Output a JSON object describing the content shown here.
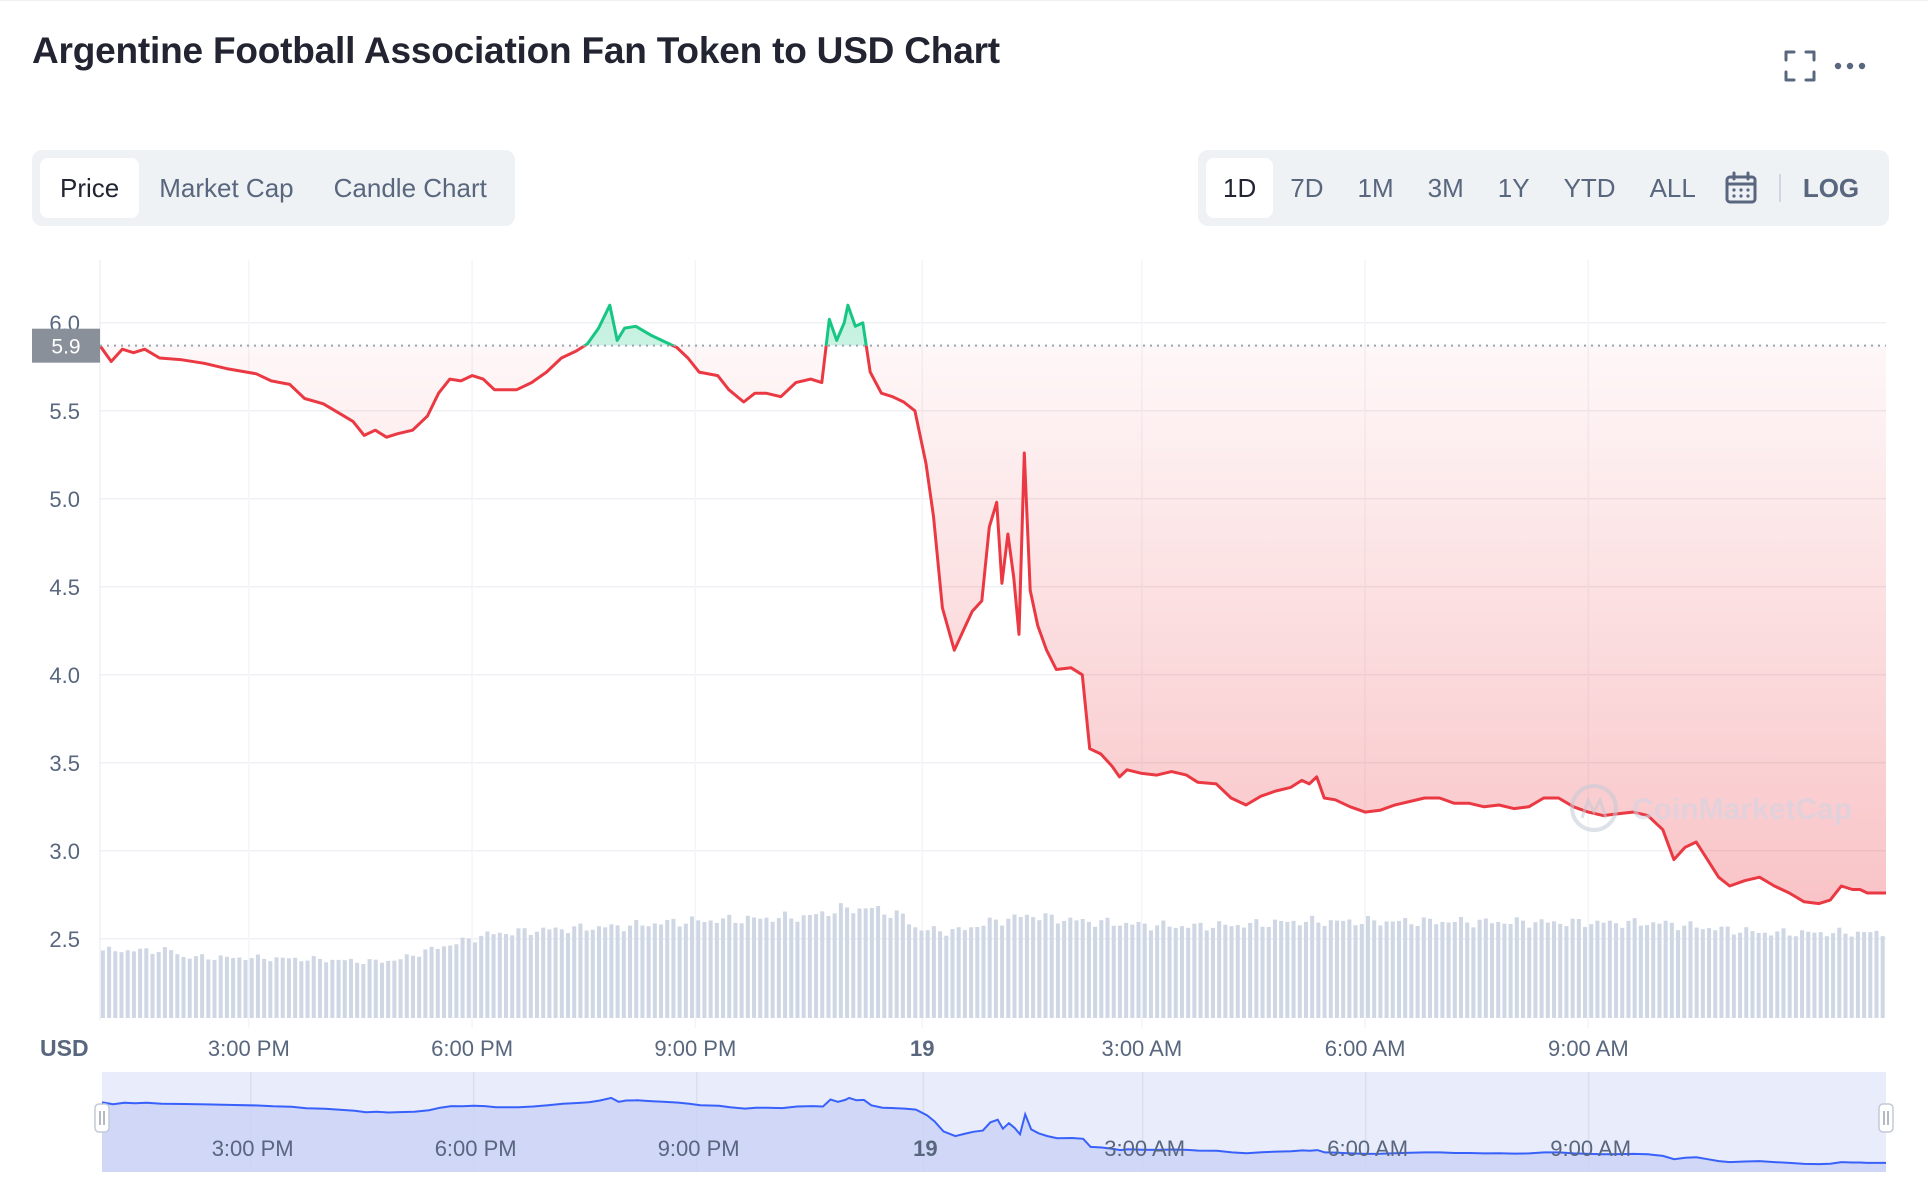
{
  "title": "Argentine Football Association Fan Token to USD Chart",
  "icons": {
    "fullscreen": "fullscreen-icon",
    "more": "more-dots-icon",
    "calendar": "calendar-icon",
    "handle": "handle-grip-icon"
  },
  "tabs": [
    {
      "label": "Price",
      "active": true
    },
    {
      "label": "Market Cap",
      "active": false
    },
    {
      "label": "Candle Chart",
      "active": false
    }
  ],
  "ranges": [
    {
      "label": "1D",
      "active": true
    },
    {
      "label": "7D",
      "active": false
    },
    {
      "label": "1M",
      "active": false
    },
    {
      "label": "3M",
      "active": false
    },
    {
      "label": "1Y",
      "active": false
    },
    {
      "label": "YTD",
      "active": false
    },
    {
      "label": "ALL",
      "active": false
    }
  ],
  "log_label": "LOG",
  "currency_label": "USD",
  "watermark": "CoinMarketCap",
  "colors": {
    "up": "#16c784",
    "down": "#ea3943",
    "volume": "#cfd6e4",
    "navigator_line": "#3861fb"
  },
  "chart_data": {
    "type": "line",
    "baseline": 5.87,
    "baseline_label": "5.9",
    "ylim": [
      2.05,
      6.3
    ],
    "y_ticks": [
      2.5,
      3.0,
      3.5,
      4.0,
      4.5,
      5.0,
      5.5,
      6.0
    ],
    "x_unit": "hours since 1:00 PM",
    "x_range": [
      0,
      24
    ],
    "x_ticks": [
      {
        "x": 2,
        "label": "3:00 PM",
        "bold": false
      },
      {
        "x": 5,
        "label": "6:00 PM",
        "bold": false
      },
      {
        "x": 8,
        "label": "9:00 PM",
        "bold": false
      },
      {
        "x": 11.05,
        "label": "19",
        "bold": true
      },
      {
        "x": 14,
        "label": "3:00 AM",
        "bold": false
      },
      {
        "x": 17,
        "label": "6:00 AM",
        "bold": false
      },
      {
        "x": 20,
        "label": "9:00 AM",
        "bold": false
      }
    ],
    "price": [
      [
        0,
        5.87
      ],
      [
        0.15,
        5.78
      ],
      [
        0.3,
        5.85
      ],
      [
        0.45,
        5.83
      ],
      [
        0.6,
        5.85
      ],
      [
        0.8,
        5.8
      ],
      [
        1.1,
        5.79
      ],
      [
        1.4,
        5.77
      ],
      [
        1.7,
        5.74
      ],
      [
        2.1,
        5.71
      ],
      [
        2.3,
        5.67
      ],
      [
        2.55,
        5.65
      ],
      [
        2.75,
        5.57
      ],
      [
        3.0,
        5.54
      ],
      [
        3.2,
        5.49
      ],
      [
        3.4,
        5.44
      ],
      [
        3.55,
        5.36
      ],
      [
        3.7,
        5.39
      ],
      [
        3.85,
        5.35
      ],
      [
        4.0,
        5.37
      ],
      [
        4.2,
        5.39
      ],
      [
        4.4,
        5.47
      ],
      [
        4.55,
        5.6
      ],
      [
        4.7,
        5.68
      ],
      [
        4.85,
        5.67
      ],
      [
        5.0,
        5.7
      ],
      [
        5.15,
        5.68
      ],
      [
        5.3,
        5.62
      ],
      [
        5.6,
        5.62
      ],
      [
        5.8,
        5.66
      ],
      [
        6.0,
        5.72
      ],
      [
        6.2,
        5.8
      ],
      [
        6.4,
        5.84
      ],
      [
        6.55,
        5.88
      ],
      [
        6.7,
        5.97
      ],
      [
        6.85,
        6.1
      ],
      [
        6.95,
        5.9
      ],
      [
        7.05,
        5.97
      ],
      [
        7.2,
        5.98
      ],
      [
        7.4,
        5.93
      ],
      [
        7.55,
        5.9
      ],
      [
        7.75,
        5.86
      ],
      [
        7.9,
        5.8
      ],
      [
        8.05,
        5.72
      ],
      [
        8.3,
        5.7
      ],
      [
        8.45,
        5.62
      ],
      [
        8.65,
        5.55
      ],
      [
        8.8,
        5.6
      ],
      [
        8.95,
        5.6
      ],
      [
        9.15,
        5.58
      ],
      [
        9.35,
        5.66
      ],
      [
        9.55,
        5.68
      ],
      [
        9.7,
        5.66
      ],
      [
        9.8,
        6.02
      ],
      [
        9.9,
        5.9
      ],
      [
        10.0,
        6.0
      ],
      [
        10.05,
        6.1
      ],
      [
        10.15,
        5.98
      ],
      [
        10.25,
        6.0
      ],
      [
        10.35,
        5.72
      ],
      [
        10.5,
        5.6
      ],
      [
        10.65,
        5.58
      ],
      [
        10.8,
        5.55
      ],
      [
        10.95,
        5.5
      ],
      [
        11.1,
        5.2
      ],
      [
        11.2,
        4.9
      ],
      [
        11.32,
        4.38
      ],
      [
        11.48,
        4.14
      ],
      [
        11.6,
        4.25
      ],
      [
        11.72,
        4.36
      ],
      [
        11.85,
        4.42
      ],
      [
        11.95,
        4.84
      ],
      [
        12.05,
        4.98
      ],
      [
        12.12,
        4.52
      ],
      [
        12.2,
        4.8
      ],
      [
        12.28,
        4.55
      ],
      [
        12.35,
        4.23
      ],
      [
        12.42,
        5.26
      ],
      [
        12.5,
        4.48
      ],
      [
        12.6,
        4.28
      ],
      [
        12.72,
        4.14
      ],
      [
        12.85,
        4.03
      ],
      [
        13.05,
        4.04
      ],
      [
        13.2,
        4.0
      ],
      [
        13.3,
        3.58
      ],
      [
        13.45,
        3.55
      ],
      [
        13.6,
        3.48
      ],
      [
        13.7,
        3.42
      ],
      [
        13.8,
        3.46
      ],
      [
        14.0,
        3.44
      ],
      [
        14.2,
        3.43
      ],
      [
        14.4,
        3.45
      ],
      [
        14.6,
        3.43
      ],
      [
        14.75,
        3.39
      ],
      [
        15.0,
        3.38
      ],
      [
        15.2,
        3.3
      ],
      [
        15.4,
        3.26
      ],
      [
        15.6,
        3.31
      ],
      [
        15.8,
        3.34
      ],
      [
        16.0,
        3.36
      ],
      [
        16.15,
        3.4
      ],
      [
        16.25,
        3.38
      ],
      [
        16.35,
        3.42
      ],
      [
        16.45,
        3.3
      ],
      [
        16.6,
        3.29
      ],
      [
        16.8,
        3.25
      ],
      [
        17.0,
        3.22
      ],
      [
        17.2,
        3.23
      ],
      [
        17.4,
        3.26
      ],
      [
        17.6,
        3.28
      ],
      [
        17.8,
        3.3
      ],
      [
        18.0,
        3.3
      ],
      [
        18.2,
        3.27
      ],
      [
        18.4,
        3.27
      ],
      [
        18.6,
        3.25
      ],
      [
        18.8,
        3.26
      ],
      [
        19.0,
        3.24
      ],
      [
        19.2,
        3.25
      ],
      [
        19.4,
        3.3
      ],
      [
        19.6,
        3.3
      ],
      [
        19.8,
        3.25
      ],
      [
        20.0,
        3.22
      ],
      [
        20.2,
        3.2
      ],
      [
        20.4,
        3.21
      ],
      [
        20.6,
        3.22
      ],
      [
        20.8,
        3.2
      ],
      [
        21.0,
        3.12
      ],
      [
        21.15,
        2.95
      ],
      [
        21.3,
        3.02
      ],
      [
        21.45,
        3.05
      ],
      [
        21.6,
        2.95
      ],
      [
        21.75,
        2.85
      ],
      [
        21.9,
        2.8
      ],
      [
        22.1,
        2.83
      ],
      [
        22.3,
        2.85
      ],
      [
        22.5,
        2.8
      ],
      [
        22.7,
        2.76
      ],
      [
        22.9,
        2.71
      ],
      [
        23.1,
        2.7
      ],
      [
        23.25,
        2.72
      ],
      [
        23.4,
        2.8
      ],
      [
        23.55,
        2.78
      ],
      [
        23.65,
        2.78
      ],
      [
        23.75,
        2.76
      ],
      [
        24,
        2.76
      ]
    ],
    "volume_profile": [
      [
        0,
        0.42
      ],
      [
        1.0,
        0.42
      ],
      [
        1.1,
        0.38
      ],
      [
        2.5,
        0.37
      ],
      [
        3.2,
        0.36
      ],
      [
        3.6,
        0.35
      ],
      [
        4.0,
        0.36
      ],
      [
        4.4,
        0.42
      ],
      [
        4.9,
        0.48
      ],
      [
        5.2,
        0.52
      ],
      [
        6.0,
        0.55
      ],
      [
        7.0,
        0.57
      ],
      [
        7.8,
        0.6
      ],
      [
        8.4,
        0.61
      ],
      [
        9.5,
        0.63
      ],
      [
        10.0,
        0.68
      ],
      [
        10.4,
        0.68
      ],
      [
        10.8,
        0.63
      ],
      [
        11.0,
        0.55
      ],
      [
        11.5,
        0.54
      ],
      [
        12.0,
        0.6
      ],
      [
        12.5,
        0.64
      ],
      [
        12.8,
        0.62
      ],
      [
        13.3,
        0.6
      ],
      [
        14.0,
        0.58
      ],
      [
        14.6,
        0.57
      ],
      [
        15.4,
        0.58
      ],
      [
        16.0,
        0.6
      ],
      [
        18.0,
        0.6
      ],
      [
        21.0,
        0.59
      ],
      [
        21.6,
        0.56
      ],
      [
        22.4,
        0.53
      ],
      [
        24,
        0.53
      ]
    ]
  }
}
